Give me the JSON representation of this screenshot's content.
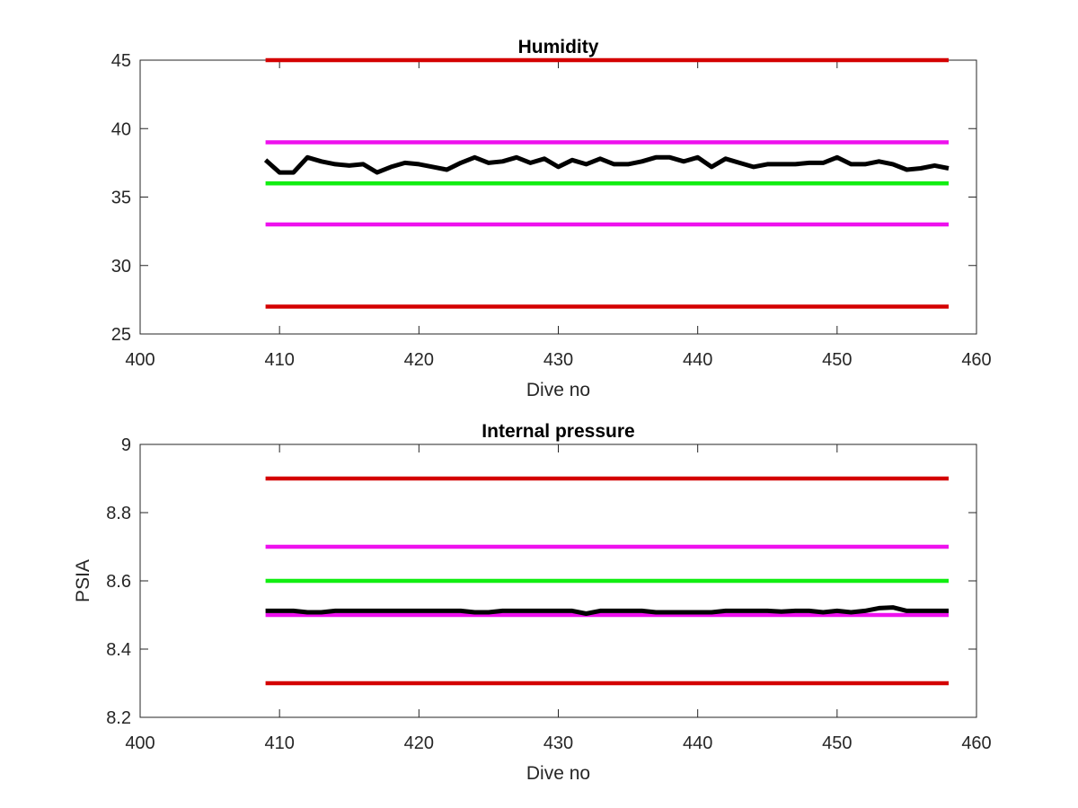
{
  "chart_data": [
    {
      "type": "line",
      "title": "Humidity",
      "xlabel": "Dive no",
      "ylabel": "",
      "xlim": [
        400,
        460
      ],
      "ylim": [
        25,
        45
      ],
      "xticks": [
        400,
        410,
        420,
        430,
        440,
        450,
        460
      ],
      "yticks": [
        25,
        30,
        35,
        40,
        45
      ],
      "grid": false,
      "series": [
        {
          "color": "#d40000",
          "x": [
            409,
            458
          ],
          "values": [
            45,
            45
          ]
        },
        {
          "color": "#ee11ee",
          "x": [
            409,
            458
          ],
          "values": [
            39,
            39
          ]
        },
        {
          "color": "#11ee11",
          "x": [
            409,
            458
          ],
          "values": [
            36,
            36
          ]
        },
        {
          "color": "#ee11ee",
          "x": [
            409,
            458
          ],
          "values": [
            33,
            33
          ]
        },
        {
          "color": "#d40000",
          "x": [
            409,
            458
          ],
          "values": [
            27,
            27
          ]
        },
        {
          "color": "#000000",
          "x": [
            409,
            410,
            411,
            412,
            413,
            414,
            415,
            416,
            417,
            418,
            419,
            420,
            421,
            422,
            423,
            424,
            425,
            426,
            427,
            428,
            429,
            430,
            431,
            432,
            433,
            434,
            435,
            436,
            437,
            438,
            439,
            440,
            441,
            442,
            443,
            444,
            445,
            446,
            447,
            448,
            449,
            450,
            451,
            452,
            453,
            454,
            455,
            456,
            457,
            458
          ],
          "values": [
            37.7,
            36.8,
            36.8,
            37.9,
            37.6,
            37.4,
            37.3,
            37.4,
            36.8,
            37.2,
            37.5,
            37.4,
            37.2,
            37.0,
            37.5,
            37.9,
            37.5,
            37.6,
            37.9,
            37.5,
            37.8,
            37.2,
            37.7,
            37.4,
            37.8,
            37.4,
            37.4,
            37.6,
            37.9,
            37.9,
            37.6,
            37.9,
            37.2,
            37.8,
            37.5,
            37.2,
            37.4,
            37.4,
            37.4,
            37.5,
            37.5,
            37.9,
            37.4,
            37.4,
            37.6,
            37.4,
            37.0,
            37.1,
            37.3,
            37.1
          ]
        }
      ]
    },
    {
      "type": "line",
      "title": "Internal pressure",
      "xlabel": "Dive no",
      "ylabel": "PSIA",
      "xlim": [
        400,
        460
      ],
      "ylim": [
        8.2,
        9
      ],
      "xticks": [
        400,
        410,
        420,
        430,
        440,
        450,
        460
      ],
      "yticks": [
        "8.2",
        "8.4",
        "8.6",
        "8.8",
        "9"
      ],
      "grid": false,
      "series": [
        {
          "color": "#d40000",
          "x": [
            409,
            458
          ],
          "values": [
            8.9,
            8.9
          ]
        },
        {
          "color": "#ee11ee",
          "x": [
            409,
            458
          ],
          "values": [
            8.7,
            8.7
          ]
        },
        {
          "color": "#11ee11",
          "x": [
            409,
            458
          ],
          "values": [
            8.6,
            8.6
          ]
        },
        {
          "color": "#ee11ee",
          "x": [
            409,
            458
          ],
          "values": [
            8.5,
            8.5
          ]
        },
        {
          "color": "#d40000",
          "x": [
            409,
            458
          ],
          "values": [
            8.3,
            8.3
          ]
        },
        {
          "color": "#000000",
          "x": [
            409,
            410,
            411,
            412,
            413,
            414,
            415,
            416,
            417,
            418,
            419,
            420,
            421,
            422,
            423,
            424,
            425,
            426,
            427,
            428,
            429,
            430,
            431,
            432,
            433,
            434,
            435,
            436,
            437,
            438,
            439,
            440,
            441,
            442,
            443,
            444,
            445,
            446,
            447,
            448,
            449,
            450,
            451,
            452,
            453,
            454,
            455,
            456,
            457,
            458
          ],
          "values": [
            8.512,
            8.512,
            8.512,
            8.508,
            8.508,
            8.512,
            8.512,
            8.512,
            8.512,
            8.512,
            8.512,
            8.512,
            8.512,
            8.512,
            8.512,
            8.508,
            8.508,
            8.512,
            8.512,
            8.512,
            8.512,
            8.512,
            8.512,
            8.504,
            8.512,
            8.512,
            8.512,
            8.512,
            8.508,
            8.508,
            8.508,
            8.508,
            8.508,
            8.512,
            8.512,
            8.512,
            8.512,
            8.51,
            8.512,
            8.512,
            8.508,
            8.512,
            8.508,
            8.512,
            8.52,
            8.522,
            8.512,
            8.512,
            8.512,
            8.512
          ]
        }
      ]
    }
  ]
}
